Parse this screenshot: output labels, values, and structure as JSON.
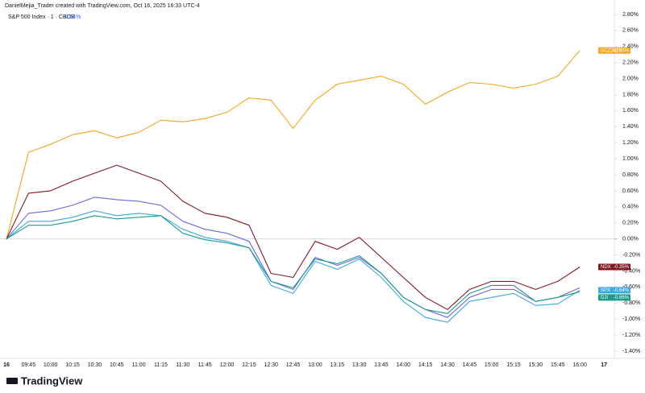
{
  "header": "DanielMejia_Trader created with TradingView.com, Oct 16, 2025 16:33 UTC-4",
  "legend_title": "S&P 500 Index · 1 · CBOE",
  "legend_value": "-0.64%",
  "brand": "TradingView",
  "chart_data": {
    "type": "line",
    "x": [
      "09:30",
      "09:45",
      "10:00",
      "10:15",
      "10:30",
      "10:45",
      "11:00",
      "11:15",
      "11:30",
      "11:45",
      "12:00",
      "12:15",
      "12:30",
      "12:45",
      "13:00",
      "13:15",
      "13:30",
      "13:45",
      "14:00",
      "14:15",
      "14:30",
      "14:45",
      "15:00",
      "15:15",
      "15:30",
      "15:45",
      "16:00"
    ],
    "xtick_labels": [
      "16",
      "09:45",
      "10:00",
      "10:15",
      "10:30",
      "10:45",
      "11:00",
      "11:15",
      "11:30",
      "11:45",
      "12:00",
      "12:15",
      "12:30",
      "12:45",
      "13:00",
      "13:15",
      "13:30",
      "13:45",
      "14:00",
      "14:15",
      "14:30",
      "14:45",
      "15:00",
      "15:15",
      "15:30",
      "15:45",
      "16:00",
      "17"
    ],
    "ylim": [
      -1.49,
      2.98
    ],
    "yticks": [
      {
        "value": 2.8,
        "label": "2.80%"
      },
      {
        "value": 2.6,
        "label": "2.60%"
      },
      {
        "value": 2.4,
        "label": "2.40%"
      },
      {
        "value": 2.2,
        "label": "2.20%"
      },
      {
        "value": 2.0,
        "label": "2.00%"
      },
      {
        "value": 1.8,
        "label": "1.80%"
      },
      {
        "value": 1.6,
        "label": "1.60%"
      },
      {
        "value": 1.4,
        "label": "1.40%"
      },
      {
        "value": 1.2,
        "label": "1.20%"
      },
      {
        "value": 1.0,
        "label": "1.00%"
      },
      {
        "value": 0.8,
        "label": "0.80%"
      },
      {
        "value": 0.6,
        "label": "0.60%"
      },
      {
        "value": 0.4,
        "label": "0.40%"
      },
      {
        "value": 0.2,
        "label": "0.20%"
      },
      {
        "value": 0,
        "label": "0.00%"
      },
      {
        "value": -0.2,
        "label": "-0.20%"
      },
      {
        "value": -0.4,
        "label": "-0.40%"
      },
      {
        "value": -0.6,
        "label": "-0.60%"
      },
      {
        "value": -0.8,
        "label": "-0.80%"
      },
      {
        "value": -1.0,
        "label": "-1.00%"
      },
      {
        "value": -1.2,
        "label": "-1.20%"
      },
      {
        "value": -1.4,
        "label": "-1.40%"
      }
    ],
    "series": [
      {
        "name": "GCZ2025",
        "color": "#f5a623",
        "last_value_label": "+2.35%",
        "values": [
          0,
          1.08,
          1.18,
          1.3,
          1.35,
          1.26,
          1.33,
          1.48,
          1.46,
          1.5,
          1.58,
          1.76,
          1.73,
          1.38,
          1.73,
          1.93,
          1.98,
          2.03,
          1.93,
          1.68,
          1.83,
          1.95,
          1.93,
          1.88,
          1.93,
          2.03,
          2.35
        ]
      },
      {
        "color": "#6a6ad8",
        "values": [
          0,
          0.32,
          0.35,
          0.42,
          0.52,
          0.49,
          0.47,
          0.42,
          0.22,
          0.12,
          0.07,
          -0.03,
          -0.53,
          -0.63,
          -0.23,
          -0.33,
          -0.23,
          -0.43,
          -0.73,
          -0.88,
          -0.98,
          -0.73,
          -0.63,
          -0.63,
          -0.78,
          -0.73,
          -0.61
        ]
      },
      {
        "name": "NDX",
        "color": "#801922",
        "last_value_label": "-0.35%",
        "values": [
          0,
          0.57,
          0.6,
          0.72,
          0.82,
          0.92,
          0.82,
          0.72,
          0.47,
          0.32,
          0.27,
          0.17,
          -0.43,
          -0.48,
          -0.03,
          -0.13,
          0.02,
          -0.23,
          -0.48,
          -0.73,
          -0.88,
          -0.63,
          -0.53,
          -0.53,
          -0.63,
          -0.53,
          -0.35
        ]
      },
      {
        "name": "SPX",
        "color": "#3ea8e0",
        "last_value_label": "-0.64%",
        "values": [
          0,
          0.22,
          0.22,
          0.27,
          0.35,
          0.29,
          0.32,
          0.29,
          0.12,
          0.02,
          -0.03,
          -0.11,
          -0.58,
          -0.68,
          -0.28,
          -0.38,
          -0.25,
          -0.48,
          -0.78,
          -0.98,
          -1.04,
          -0.78,
          -0.73,
          -0.68,
          -0.83,
          -0.81,
          -0.64
        ]
      },
      {
        "name": "DJI",
        "color": "#1e9a8a",
        "last_value_label": "-0.66%",
        "values": [
          0,
          0.17,
          0.17,
          0.22,
          0.29,
          0.25,
          0.27,
          0.29,
          0.07,
          -0.01,
          -0.05,
          -0.11,
          -0.53,
          -0.61,
          -0.25,
          -0.31,
          -0.21,
          -0.43,
          -0.73,
          -0.88,
          -0.93,
          -0.68,
          -0.58,
          -0.58,
          -0.78,
          -0.73,
          -0.66
        ]
      }
    ]
  }
}
